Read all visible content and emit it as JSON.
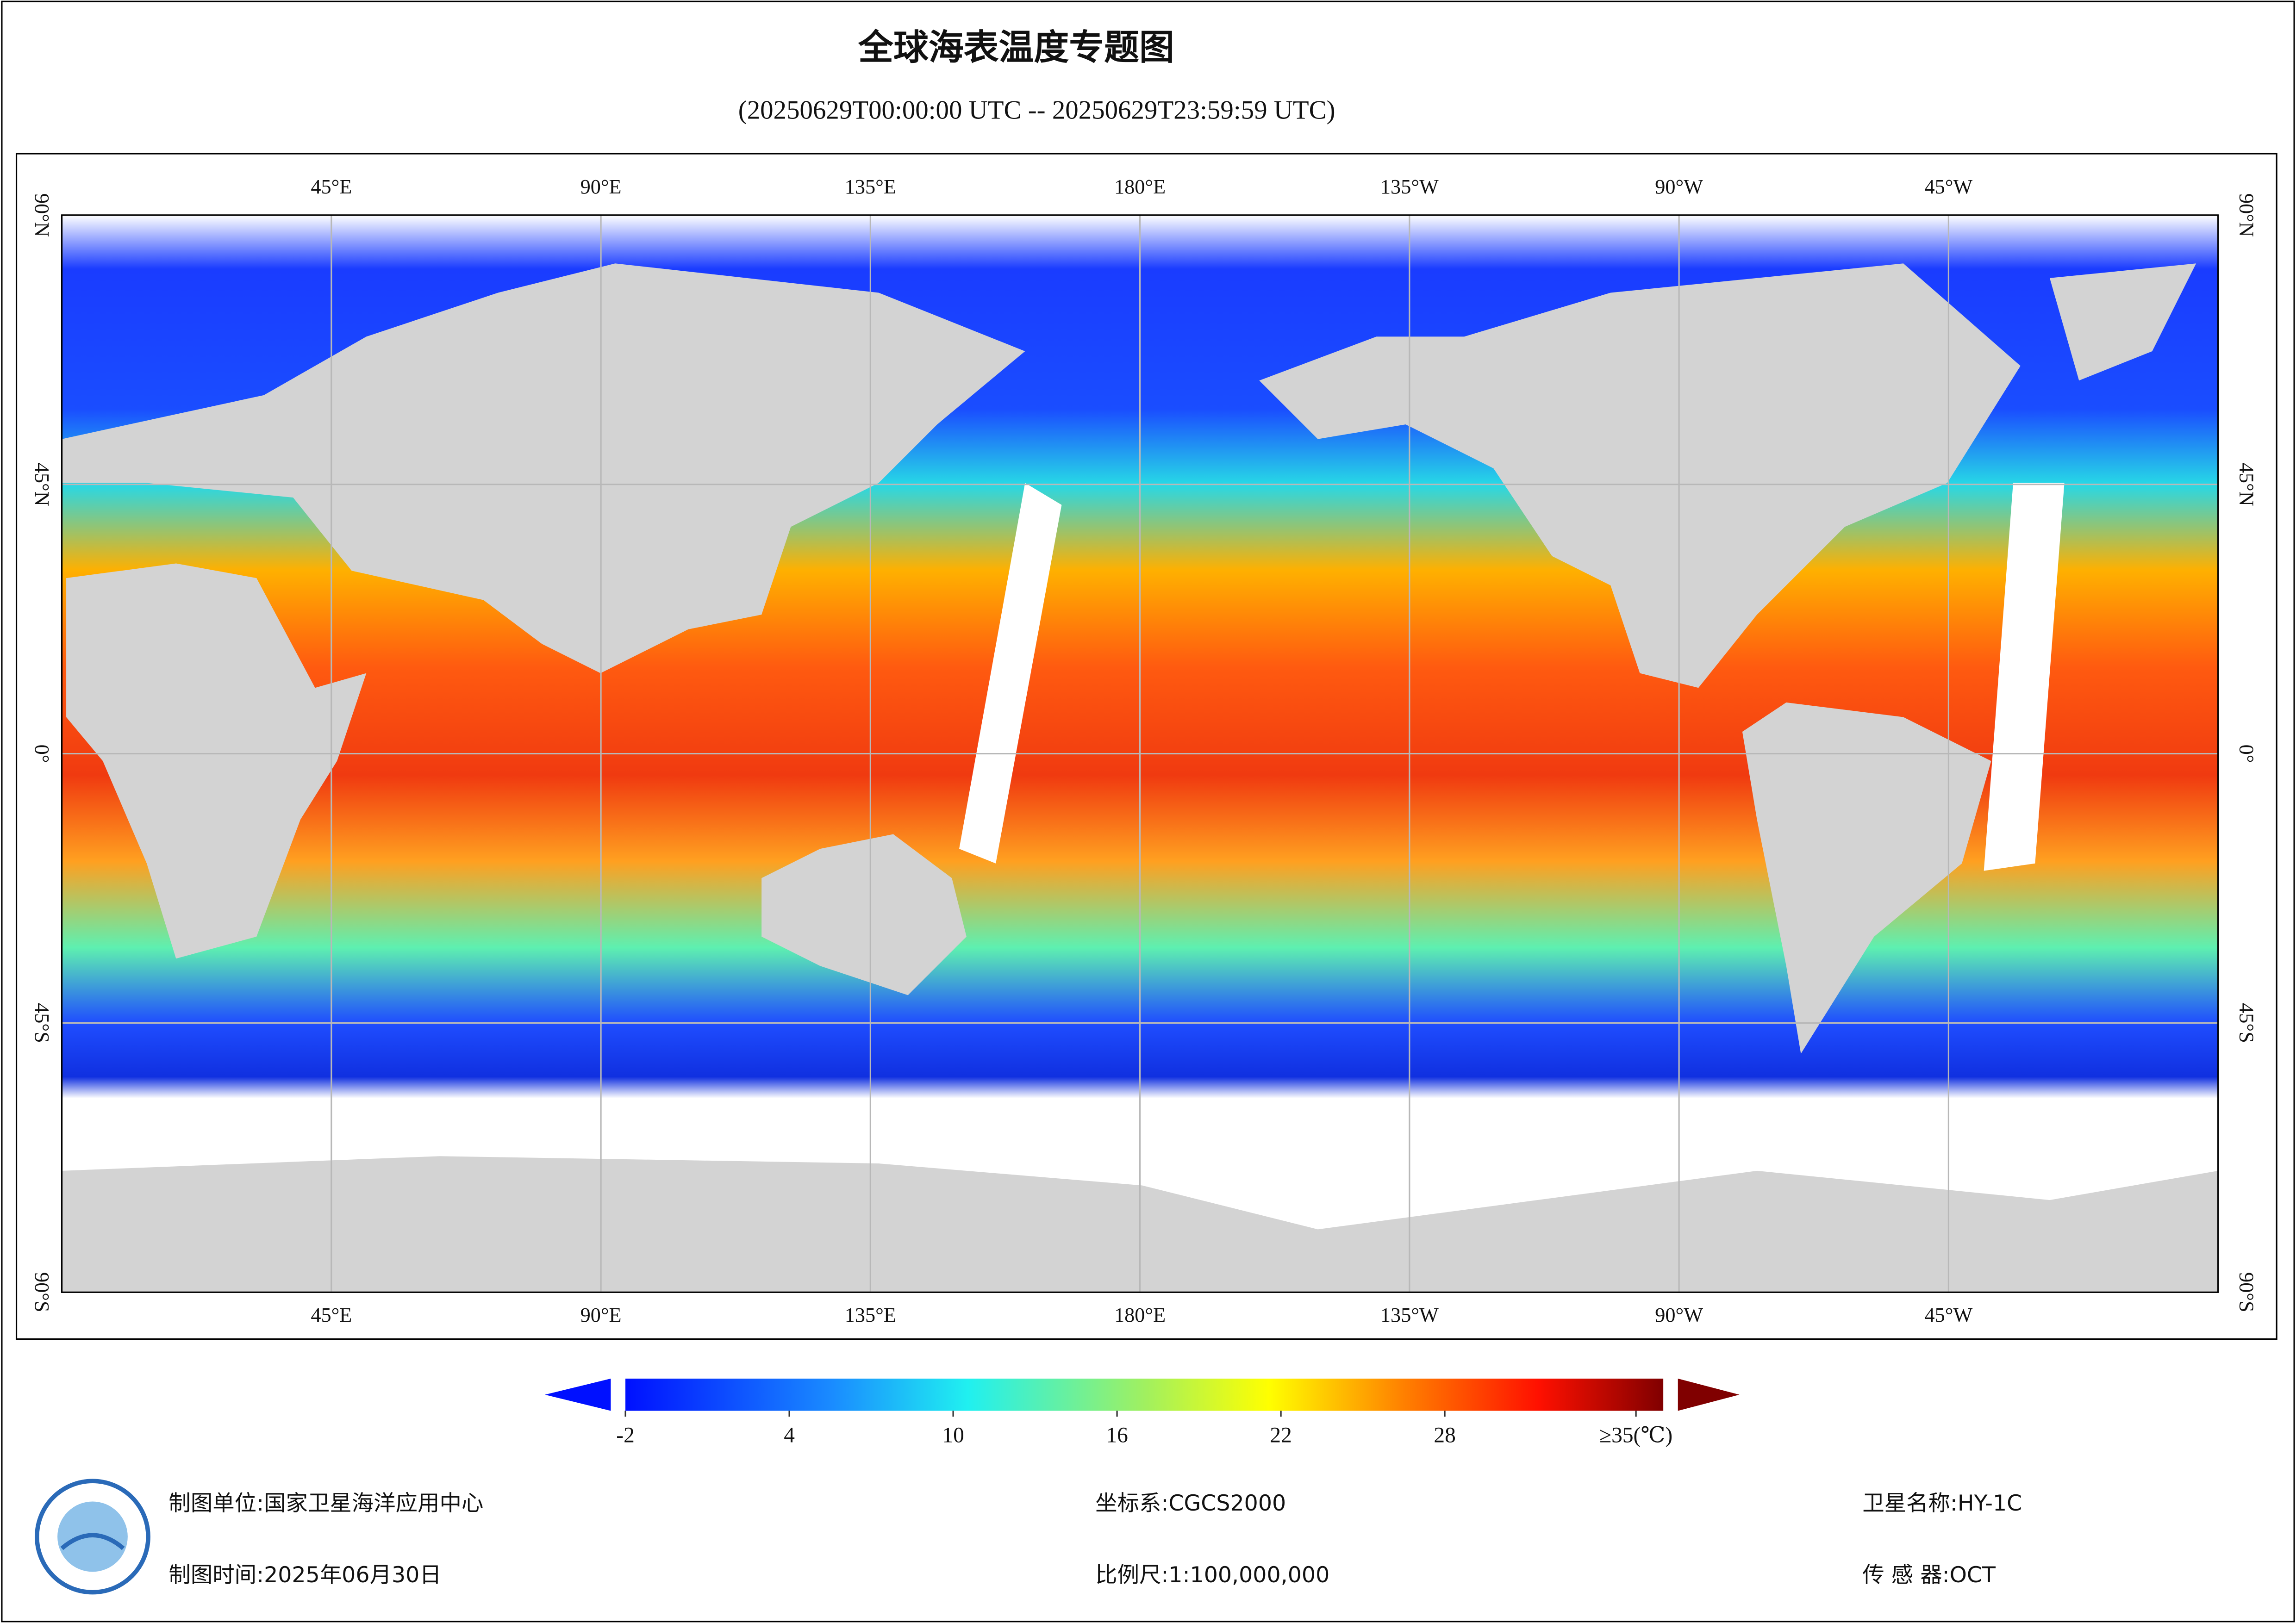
{
  "title": "全球海表温度专题图",
  "subtitle": "(20250629T00:00:00 UTC -- 20250629T23:59:59 UTC)",
  "map": {
    "lonlim": [
      0,
      360
    ],
    "latlim": [
      -90,
      90
    ],
    "lon_ticks": [
      {
        "value": 45,
        "label": "45°E"
      },
      {
        "value": 90,
        "label": "90°E"
      },
      {
        "value": 135,
        "label": "135°E"
      },
      {
        "value": 180,
        "label": "180°E"
      },
      {
        "value": 225,
        "label": "135°W"
      },
      {
        "value": 270,
        "label": "90°W"
      },
      {
        "value": 315,
        "label": "45°W"
      }
    ],
    "lat_ticks": [
      {
        "value": 90,
        "label": "90°N"
      },
      {
        "value": 45,
        "label": "45°N"
      },
      {
        "value": 0,
        "label": "0°"
      },
      {
        "value": -45,
        "label": "45°S"
      },
      {
        "value": -90,
        "label": "90°S"
      }
    ]
  },
  "colorbar": {
    "range": [
      -2,
      36
    ],
    "ticks": [
      -2,
      4,
      10,
      16,
      22,
      28,
      {
        "value": 35,
        "label": "≥35(℃)"
      }
    ]
  },
  "footer": {
    "unit": "制图单位:国家卫星海洋应用中心",
    "time": "制图时间:2025年06月30日",
    "crs": "坐标系:CGCS2000",
    "scale": "比例尺:1:100,000,000",
    "satellite": "卫星名称:HY-1C",
    "sensor": "传 感 器:OCT"
  }
}
